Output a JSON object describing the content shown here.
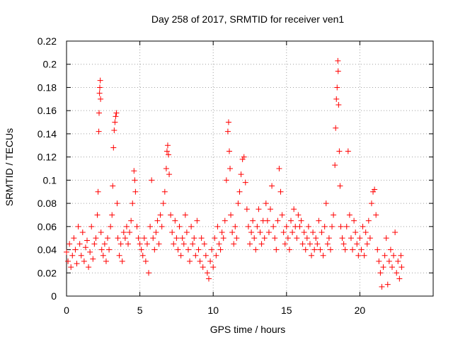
{
  "chart_data": {
    "type": "scatter",
    "title": "Day 258 of 2017, SRMTID for receiver ven1",
    "xlabel": "GPS time / hours",
    "ylabel": "SRMTID / TECUs",
    "xlim": [
      0,
      25
    ],
    "ylim": [
      0,
      0.22
    ],
    "xticks": [
      0,
      5,
      10,
      15,
      20
    ],
    "xtick_labels": [
      "0",
      "5",
      "10",
      "15",
      "20"
    ],
    "yticks": [
      0,
      0.02,
      0.04,
      0.06,
      0.08,
      0.1,
      0.12,
      0.14,
      0.16,
      0.18,
      0.2,
      0.22
    ],
    "ytick_labels": [
      "0",
      "0.02",
      "0.04",
      "0.06",
      "0.08",
      "0.1",
      "0.12",
      "0.14",
      "0.16",
      "0.18",
      "0.2",
      "0.22"
    ],
    "grid": true,
    "marker": "+",
    "series": [
      {
        "name": "ven1",
        "color": "#ff0000",
        "points": [
          [
            0.0,
            0.038
          ],
          [
            0.1,
            0.03
          ],
          [
            0.2,
            0.045
          ],
          [
            0.3,
            0.025
          ],
          [
            0.4,
            0.035
          ],
          [
            0.5,
            0.05
          ],
          [
            0.6,
            0.04
          ],
          [
            0.7,
            0.028
          ],
          [
            0.8,
            0.06
          ],
          [
            0.9,
            0.045
          ],
          [
            1.0,
            0.035
          ],
          [
            1.1,
            0.055
          ],
          [
            1.2,
            0.03
          ],
          [
            1.3,
            0.042
          ],
          [
            1.4,
            0.048
          ],
          [
            1.5,
            0.025
          ],
          [
            1.6,
            0.038
          ],
          [
            1.7,
            0.06
          ],
          [
            1.8,
            0.032
          ],
          [
            1.9,
            0.045
          ],
          [
            2.0,
            0.05
          ],
          [
            2.1,
            0.07
          ],
          [
            2.15,
            0.09
          ],
          [
            2.2,
            0.142
          ],
          [
            2.22,
            0.158
          ],
          [
            2.25,
            0.175
          ],
          [
            2.27,
            0.18
          ],
          [
            2.3,
            0.186
          ],
          [
            2.32,
            0.17
          ],
          [
            2.35,
            0.055
          ],
          [
            2.4,
            0.04
          ],
          [
            2.5,
            0.035
          ],
          [
            2.6,
            0.045
          ],
          [
            2.7,
            0.03
          ],
          [
            2.8,
            0.05
          ],
          [
            2.9,
            0.04
          ],
          [
            3.0,
            0.06
          ],
          [
            3.1,
            0.07
          ],
          [
            3.15,
            0.095
          ],
          [
            3.2,
            0.128
          ],
          [
            3.25,
            0.143
          ],
          [
            3.3,
            0.15
          ],
          [
            3.35,
            0.155
          ],
          [
            3.4,
            0.158
          ],
          [
            3.45,
            0.08
          ],
          [
            3.5,
            0.05
          ],
          [
            3.6,
            0.035
          ],
          [
            3.7,
            0.045
          ],
          [
            3.8,
            0.03
          ],
          [
            3.9,
            0.055
          ],
          [
            4.0,
            0.05
          ],
          [
            4.1,
            0.06
          ],
          [
            4.2,
            0.045
          ],
          [
            4.3,
            0.055
          ],
          [
            4.4,
            0.065
          ],
          [
            4.5,
            0.08
          ],
          [
            4.6,
            0.108
          ],
          [
            4.65,
            0.1
          ],
          [
            4.7,
            0.09
          ],
          [
            4.8,
            0.06
          ],
          [
            4.9,
            0.05
          ],
          [
            5.0,
            0.045
          ],
          [
            5.1,
            0.04
          ],
          [
            5.2,
            0.035
          ],
          [
            5.3,
            0.05
          ],
          [
            5.4,
            0.03
          ],
          [
            5.5,
            0.045
          ],
          [
            5.6,
            0.02
          ],
          [
            5.7,
            0.06
          ],
          [
            5.8,
            0.1
          ],
          [
            5.9,
            0.05
          ],
          [
            6.0,
            0.04
          ],
          [
            6.1,
            0.055
          ],
          [
            6.2,
            0.065
          ],
          [
            6.3,
            0.045
          ],
          [
            6.4,
            0.07
          ],
          [
            6.5,
            0.06
          ],
          [
            6.6,
            0.08
          ],
          [
            6.7,
            0.09
          ],
          [
            6.8,
            0.11
          ],
          [
            6.85,
            0.125
          ],
          [
            6.9,
            0.13
          ],
          [
            6.95,
            0.122
          ],
          [
            7.0,
            0.105
          ],
          [
            7.1,
            0.07
          ],
          [
            7.2,
            0.055
          ],
          [
            7.3,
            0.045
          ],
          [
            7.4,
            0.065
          ],
          [
            7.5,
            0.05
          ],
          [
            7.6,
            0.04
          ],
          [
            7.7,
            0.06
          ],
          [
            7.8,
            0.035
          ],
          [
            7.9,
            0.05
          ],
          [
            8.0,
            0.045
          ],
          [
            8.1,
            0.07
          ],
          [
            8.2,
            0.055
          ],
          [
            8.3,
            0.04
          ],
          [
            8.4,
            0.03
          ],
          [
            8.5,
            0.06
          ],
          [
            8.6,
            0.045
          ],
          [
            8.7,
            0.05
          ],
          [
            8.8,
            0.035
          ],
          [
            8.9,
            0.065
          ],
          [
            9.0,
            0.04
          ],
          [
            9.1,
            0.03
          ],
          [
            9.2,
            0.05
          ],
          [
            9.3,
            0.025
          ],
          [
            9.4,
            0.045
          ],
          [
            9.5,
            0.035
          ],
          [
            9.6,
            0.02
          ],
          [
            9.7,
            0.015
          ],
          [
            9.8,
            0.03
          ],
          [
            9.9,
            0.04
          ],
          [
            10.0,
            0.025
          ],
          [
            10.1,
            0.05
          ],
          [
            10.2,
            0.035
          ],
          [
            10.3,
            0.06
          ],
          [
            10.4,
            0.045
          ],
          [
            10.5,
            0.04
          ],
          [
            10.6,
            0.055
          ],
          [
            10.7,
            0.05
          ],
          [
            10.8,
            0.065
          ],
          [
            10.9,
            0.1
          ],
          [
            11.0,
            0.142
          ],
          [
            11.05,
            0.15
          ],
          [
            11.1,
            0.125
          ],
          [
            11.15,
            0.11
          ],
          [
            11.2,
            0.07
          ],
          [
            11.3,
            0.055
          ],
          [
            11.4,
            0.045
          ],
          [
            11.5,
            0.06
          ],
          [
            11.6,
            0.05
          ],
          [
            11.7,
            0.08
          ],
          [
            11.8,
            0.09
          ],
          [
            11.9,
            0.105
          ],
          [
            12.0,
            0.118
          ],
          [
            12.1,
            0.12
          ],
          [
            12.2,
            0.098
          ],
          [
            12.3,
            0.075
          ],
          [
            12.4,
            0.06
          ],
          [
            12.5,
            0.045
          ],
          [
            12.6,
            0.055
          ],
          [
            12.7,
            0.065
          ],
          [
            12.8,
            0.05
          ],
          [
            12.9,
            0.04
          ],
          [
            13.0,
            0.06
          ],
          [
            13.1,
            0.075
          ],
          [
            13.2,
            0.055
          ],
          [
            13.3,
            0.045
          ],
          [
            13.4,
            0.065
          ],
          [
            13.5,
            0.05
          ],
          [
            13.6,
            0.08
          ],
          [
            13.7,
            0.065
          ],
          [
            13.8,
            0.055
          ],
          [
            13.9,
            0.075
          ],
          [
            14.0,
            0.095
          ],
          [
            14.1,
            0.06
          ],
          [
            14.2,
            0.05
          ],
          [
            14.3,
            0.04
          ],
          [
            14.4,
            0.065
          ],
          [
            14.5,
            0.11
          ],
          [
            14.6,
            0.09
          ],
          [
            14.7,
            0.07
          ],
          [
            14.8,
            0.055
          ],
          [
            14.9,
            0.045
          ],
          [
            15.0,
            0.06
          ],
          [
            15.1,
            0.05
          ],
          [
            15.2,
            0.04
          ],
          [
            15.3,
            0.065
          ],
          [
            15.4,
            0.055
          ],
          [
            15.5,
            0.075
          ],
          [
            15.6,
            0.06
          ],
          [
            15.7,
            0.05
          ],
          [
            15.8,
            0.07
          ],
          [
            15.9,
            0.06
          ],
          [
            16.0,
            0.065
          ],
          [
            16.1,
            0.045
          ],
          [
            16.2,
            0.055
          ],
          [
            16.3,
            0.04
          ],
          [
            16.4,
            0.05
          ],
          [
            16.5,
            0.06
          ],
          [
            16.6,
            0.045
          ],
          [
            16.7,
            0.035
          ],
          [
            16.8,
            0.055
          ],
          [
            16.9,
            0.04
          ],
          [
            17.0,
            0.05
          ],
          [
            17.1,
            0.045
          ],
          [
            17.2,
            0.065
          ],
          [
            17.3,
            0.04
          ],
          [
            17.4,
            0.055
          ],
          [
            17.5,
            0.035
          ],
          [
            17.6,
            0.06
          ],
          [
            17.7,
            0.08
          ],
          [
            17.8,
            0.045
          ],
          [
            17.9,
            0.05
          ],
          [
            18.0,
            0.04
          ],
          [
            18.1,
            0.06
          ],
          [
            18.2,
            0.07
          ],
          [
            18.3,
            0.113
          ],
          [
            18.35,
            0.145
          ],
          [
            18.4,
            0.17
          ],
          [
            18.45,
            0.18
          ],
          [
            18.5,
            0.203
          ],
          [
            18.52,
            0.194
          ],
          [
            18.55,
            0.165
          ],
          [
            18.6,
            0.125
          ],
          [
            18.65,
            0.095
          ],
          [
            18.7,
            0.06
          ],
          [
            18.8,
            0.05
          ],
          [
            18.9,
            0.045
          ],
          [
            19.0,
            0.04
          ],
          [
            19.1,
            0.06
          ],
          [
            19.2,
            0.125
          ],
          [
            19.3,
            0.07
          ],
          [
            19.4,
            0.05
          ],
          [
            19.5,
            0.04
          ],
          [
            19.6,
            0.065
          ],
          [
            19.7,
            0.055
          ],
          [
            19.8,
            0.045
          ],
          [
            19.9,
            0.035
          ],
          [
            20.0,
            0.05
          ],
          [
            20.1,
            0.04
          ],
          [
            20.2,
            0.06
          ],
          [
            20.3,
            0.035
          ],
          [
            20.4,
            0.055
          ],
          [
            20.5,
            0.045
          ],
          [
            20.6,
            0.065
          ],
          [
            20.7,
            0.05
          ],
          [
            20.8,
            0.08
          ],
          [
            20.9,
            0.09
          ],
          [
            21.0,
            0.092
          ],
          [
            21.1,
            0.07
          ],
          [
            21.2,
            0.04
          ],
          [
            21.3,
            0.03
          ],
          [
            21.4,
            0.02
          ],
          [
            21.5,
            0.008
          ],
          [
            21.6,
            0.025
          ],
          [
            21.7,
            0.035
          ],
          [
            21.8,
            0.05
          ],
          [
            21.9,
            0.01
          ],
          [
            22.0,
            0.03
          ],
          [
            22.1,
            0.04
          ],
          [
            22.2,
            0.025
          ],
          [
            22.3,
            0.035
          ],
          [
            22.4,
            0.055
          ],
          [
            22.5,
            0.02
          ],
          [
            22.6,
            0.03
          ],
          [
            22.7,
            0.015
          ],
          [
            22.8,
            0.035
          ],
          [
            22.85,
            0.025
          ]
        ]
      }
    ]
  }
}
